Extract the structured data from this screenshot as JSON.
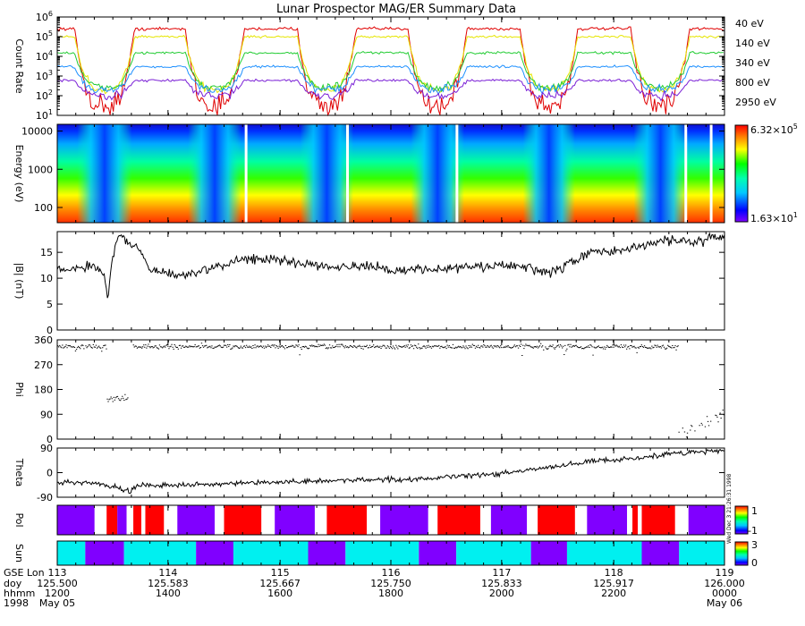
{
  "title": "Lunar Prospector MAG/ER Summary Data",
  "colors": {
    "40eV": "#e00000",
    "140eV": "#e6e600",
    "340eV": "#22cc33",
    "800eV": "#1e90ff",
    "2950eV": "#7a1fd6",
    "pol_pos": "#ff0000",
    "pol_neg": "#8000ff",
    "sun_lit": "#00f0f0",
    "sun_dark": "#8000ff"
  },
  "chart_data": [
    {
      "type": "line",
      "id": "count-rate",
      "ylabel": "Count Rate",
      "yscale": "log",
      "ylim": [
        10,
        1000000
      ],
      "yticks": [
        "10^1",
        "10^2",
        "10^3",
        "10^4",
        "10^5",
        "10^6"
      ],
      "legend_placement": "right",
      "series": [
        {
          "name": "40 eV",
          "night": 30,
          "day": 250000
        },
        {
          "name": "140 eV",
          "night": 200,
          "day": 100000
        },
        {
          "name": "340 eV",
          "night": 250,
          "day": 15000
        },
        {
          "name": "800 eV",
          "night": 200,
          "day": 3000
        },
        {
          "name": "2950 eV",
          "night": 100,
          "day": 600
        }
      ]
    },
    {
      "type": "heatmap",
      "id": "energy-spectrogram",
      "ylabel": "Energy (eV)",
      "yscale": "log",
      "ylim": [
        40,
        15000
      ],
      "yticks": [
        "100",
        "1000",
        "10000"
      ],
      "colorbar": {
        "max": "6.32×10^5",
        "min": "1.63×10^1"
      }
    },
    {
      "type": "line",
      "id": "b-magnitude",
      "ylabel": "|B| (nT)",
      "ylim": [
        0,
        19
      ],
      "yticks": [
        "0",
        "5",
        "10",
        "15"
      ]
    },
    {
      "type": "scatter",
      "id": "phi",
      "ylabel": "Phi",
      "ylim": [
        0,
        360
      ],
      "yticks": [
        "0",
        "90",
        "180",
        "270",
        "360"
      ]
    },
    {
      "type": "line",
      "id": "theta",
      "ylabel": "Theta",
      "ylim": [
        -90,
        90
      ],
      "yticks": [
        "-90",
        "0",
        "90"
      ]
    },
    {
      "type": "heatmap",
      "id": "polarity",
      "ylabel": "Pol",
      "colorbar": {
        "ticks": [
          "1",
          "-1"
        ]
      },
      "side_text": "Wed Dec 3 21:26:31 1998",
      "segments": [
        {
          "start": 125.5,
          "end": 125.528,
          "value": "neg"
        },
        {
          "start": 125.528,
          "end": 125.537,
          "value": "gap"
        },
        {
          "start": 125.537,
          "end": 125.545,
          "value": "pos"
        },
        {
          "start": 125.545,
          "end": 125.552,
          "value": "neg"
        },
        {
          "start": 125.552,
          "end": 125.557,
          "value": "gap"
        },
        {
          "start": 125.557,
          "end": 125.563,
          "value": "pos"
        },
        {
          "start": 125.563,
          "end": 125.566,
          "value": "gap"
        },
        {
          "start": 125.566,
          "end": 125.58,
          "value": "pos"
        },
        {
          "start": 125.58,
          "end": 125.59,
          "value": "gap"
        },
        {
          "start": 125.59,
          "end": 125.618,
          "value": "neg"
        },
        {
          "start": 125.618,
          "end": 125.625,
          "value": "gap"
        },
        {
          "start": 125.625,
          "end": 125.653,
          "value": "pos"
        },
        {
          "start": 125.653,
          "end": 125.663,
          "value": "gap"
        },
        {
          "start": 125.663,
          "end": 125.693,
          "value": "neg"
        },
        {
          "start": 125.693,
          "end": 125.702,
          "value": "gap"
        },
        {
          "start": 125.702,
          "end": 125.732,
          "value": "pos"
        },
        {
          "start": 125.732,
          "end": 125.742,
          "value": "gap"
        },
        {
          "start": 125.742,
          "end": 125.778,
          "value": "neg"
        },
        {
          "start": 125.778,
          "end": 125.785,
          "value": "gap"
        },
        {
          "start": 125.785,
          "end": 125.817,
          "value": "pos"
        },
        {
          "start": 125.817,
          "end": 125.825,
          "value": "gap"
        },
        {
          "start": 125.825,
          "end": 125.852,
          "value": "neg"
        },
        {
          "start": 125.852,
          "end": 125.86,
          "value": "gap"
        },
        {
          "start": 125.86,
          "end": 125.888,
          "value": "pos"
        },
        {
          "start": 125.888,
          "end": 125.897,
          "value": "gap"
        },
        {
          "start": 125.897,
          "end": 125.927,
          "value": "neg"
        },
        {
          "start": 125.927,
          "end": 125.931,
          "value": "gap"
        },
        {
          "start": 125.931,
          "end": 125.935,
          "value": "pos"
        },
        {
          "start": 125.935,
          "end": 125.938,
          "value": "gap"
        },
        {
          "start": 125.938,
          "end": 125.963,
          "value": "pos"
        },
        {
          "start": 125.963,
          "end": 125.973,
          "value": "gap"
        },
        {
          "start": 125.973,
          "end": 126.0,
          "value": "neg"
        }
      ]
    },
    {
      "type": "heatmap",
      "id": "sun",
      "ylabel": "Sun",
      "colorbar": {
        "ticks": [
          "3",
          "0"
        ]
      },
      "segments": [
        {
          "start": 125.5,
          "end": 125.521,
          "value": "lit"
        },
        {
          "start": 125.521,
          "end": 125.55,
          "value": "dark"
        },
        {
          "start": 125.55,
          "end": 125.604,
          "value": "lit"
        },
        {
          "start": 125.604,
          "end": 125.632,
          "value": "dark"
        },
        {
          "start": 125.632,
          "end": 125.688,
          "value": "lit"
        },
        {
          "start": 125.688,
          "end": 125.716,
          "value": "dark"
        },
        {
          "start": 125.716,
          "end": 125.771,
          "value": "lit"
        },
        {
          "start": 125.771,
          "end": 125.799,
          "value": "dark"
        },
        {
          "start": 125.799,
          "end": 125.855,
          "value": "lit"
        },
        {
          "start": 125.855,
          "end": 125.882,
          "value": "dark"
        },
        {
          "start": 125.882,
          "end": 125.938,
          "value": "lit"
        },
        {
          "start": 125.938,
          "end": 125.966,
          "value": "dark"
        },
        {
          "start": 125.966,
          "end": 126.0,
          "value": "lit"
        }
      ]
    }
  ],
  "time_axis": {
    "xlim": [
      125.5,
      126.0
    ],
    "row_labels": [
      "GSE Lon",
      "doy",
      "hhmm",
      "1998"
    ],
    "ticks": [
      {
        "doy": 125.5,
        "lon": "113",
        "doy_label": "125.500",
        "hhmm": "1200",
        "date": "May 05"
      },
      {
        "doy": 125.583,
        "lon": "114",
        "doy_label": "125.583",
        "hhmm": "1400",
        "date": ""
      },
      {
        "doy": 125.667,
        "lon": "115",
        "doy_label": "125.667",
        "hhmm": "1600",
        "date": ""
      },
      {
        "doy": 125.75,
        "lon": "116",
        "doy_label": "125.750",
        "hhmm": "1800",
        "date": ""
      },
      {
        "doy": 125.833,
        "lon": "117",
        "doy_label": "125.833",
        "hhmm": "2000",
        "date": ""
      },
      {
        "doy": 125.917,
        "lon": "118",
        "doy_label": "125.917",
        "hhmm": "2200",
        "date": ""
      },
      {
        "doy": 126.0,
        "lon": "119",
        "doy_label": "126.000",
        "hhmm": "0000",
        "date": "May 06"
      }
    ]
  }
}
